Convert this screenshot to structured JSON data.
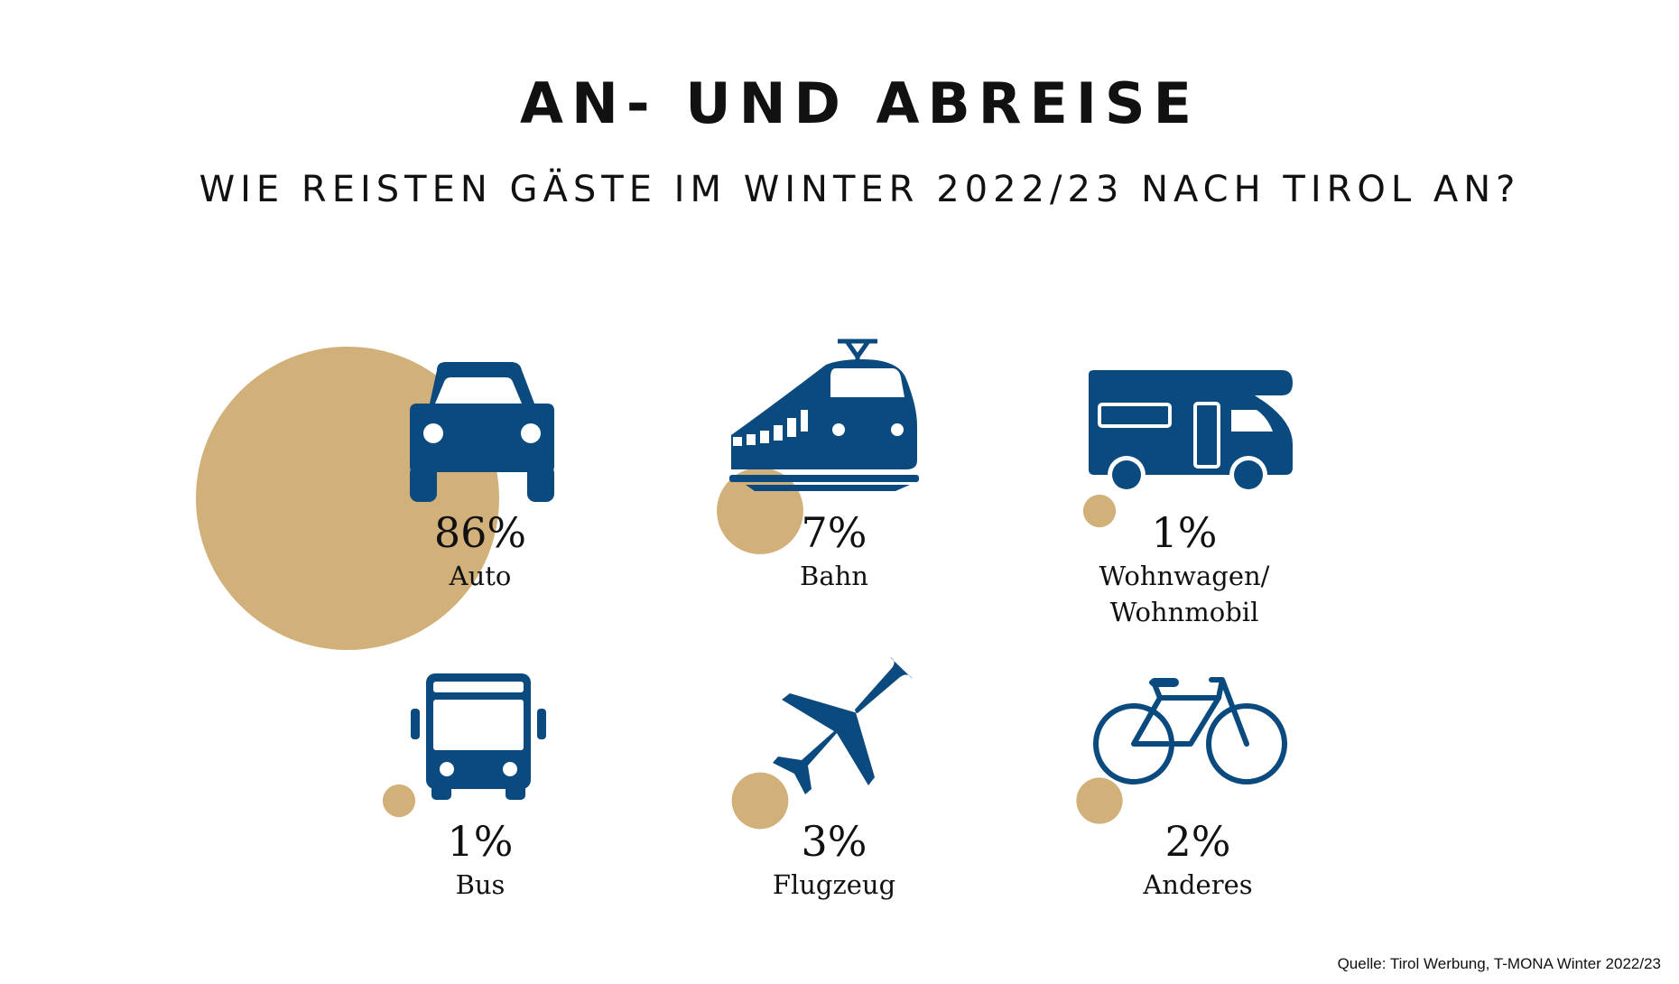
{
  "header": {
    "title": "AN- UND ABREISE",
    "subtitle": "WIE REISTEN GÄSTE IM WINTER 2022/23 NACH TIROL AN?"
  },
  "source": "Quelle: Tirol Werbung, T-MONA Winter 2022/23",
  "colors": {
    "icon": "#0a4a7f",
    "bubble": "#d2b07a",
    "text": "#111111"
  },
  "chart_data": {
    "type": "bubble",
    "title": "AN- UND ABREISE",
    "subtitle": "WIE REISTEN GÄSTE IM WINTER 2022/23 NACH TIROL AN?",
    "unit": "%",
    "categories": [
      "Auto",
      "Bahn",
      "Wohnwagen/ Wohnmobil",
      "Bus",
      "Flugzeug",
      "Anderes"
    ],
    "values": [
      86,
      7,
      1,
      1,
      3,
      2
    ],
    "items": [
      {
        "label": "Auto",
        "label_lines": [
          "Auto"
        ],
        "value": 86,
        "display": "86%",
        "icon": "car-icon"
      },
      {
        "label": "Bahn",
        "label_lines": [
          "Bahn"
        ],
        "value": 7,
        "display": "7%",
        "icon": "train-icon"
      },
      {
        "label": "Wohnwagen/ Wohnmobil",
        "label_lines": [
          "Wohnwagen/",
          "Wohnmobil"
        ],
        "value": 1,
        "display": "1%",
        "icon": "camper-icon"
      },
      {
        "label": "Bus",
        "label_lines": [
          "Bus"
        ],
        "value": 1,
        "display": "1%",
        "icon": "bus-icon"
      },
      {
        "label": "Flugzeug",
        "label_lines": [
          "Flugzeug"
        ],
        "value": 3,
        "display": "3%",
        "icon": "airplane-icon"
      },
      {
        "label": "Anderes",
        "label_lines": [
          "Anderes"
        ],
        "value": 2,
        "display": "2%",
        "icon": "bicycle-icon"
      }
    ]
  }
}
